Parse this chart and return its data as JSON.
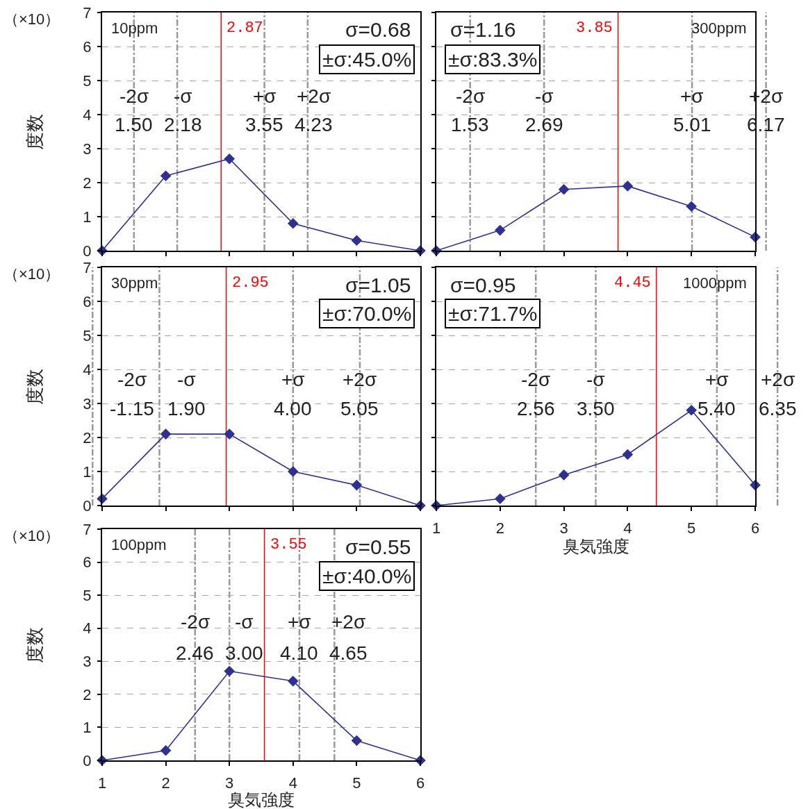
{
  "chart_data": [
    {
      "type": "line",
      "title": "10ppm",
      "ylabel": "度数",
      "x": [
        1,
        2,
        3,
        4,
        5,
        6
      ],
      "series": [
        {
          "color": "#2e3192",
          "values": [
            0,
            2.2,
            2.7,
            0.8,
            0.3,
            0
          ]
        }
      ],
      "xlim": [
        1,
        6
      ],
      "xticks": [
        1,
        2,
        3,
        4,
        5,
        6
      ],
      "ylim": [
        0,
        7
      ],
      "yticks": [
        0,
        1,
        2,
        3,
        4,
        5,
        6,
        7
      ],
      "tick_labels": "y",
      "grid": "y",
      "marker": "diamond",
      "line_style": "solid",
      "ref_lines": [
        {
          "axis": "x",
          "value": 2.87,
          "label": "2.87",
          "color": "#ff0000",
          "line_style": "solid"
        },
        {
          "axis": "x",
          "value": 1.5,
          "color": "#999999",
          "line_style": "dashdot"
        },
        {
          "axis": "x",
          "value": 2.18,
          "color": "#999999",
          "line_style": "dashdot"
        },
        {
          "axis": "x",
          "value": 3.55,
          "color": "#999999",
          "line_style": "dashdot"
        },
        {
          "axis": "x",
          "value": 4.23,
          "color": "#999999",
          "line_style": "dashdot"
        }
      ],
      "annotations": [
        "（×10）",
        "σ=0.68",
        "±σ:45.0%",
        {
          "text": "-2σ",
          "x": 1.5,
          "y": 4.55
        },
        {
          "text": "1.50",
          "x": 1.5,
          "y": 3.7
        },
        {
          "text": "-σ",
          "x": 2.18,
          "y": 4.55
        },
        {
          "text": "2.18",
          "x": 2.18,
          "y": 3.7
        },
        {
          "text": "+σ",
          "x": 3.55,
          "y": 4.55
        },
        {
          "text": "3.55",
          "x": 3.55,
          "y": 3.7
        },
        {
          "text": "+2σ",
          "x": 4.23,
          "y": 4.55
        },
        {
          "text": "4.23",
          "x": 4.23,
          "y": 3.7
        }
      ]
    },
    {
      "type": "line",
      "title": "300ppm",
      "x": [
        1,
        2,
        3,
        4,
        5,
        6
      ],
      "series": [
        {
          "color": "#2e3192",
          "values": [
            0,
            0.6,
            1.8,
            1.9,
            1.3,
            0.4
          ]
        }
      ],
      "xlim": [
        1,
        6
      ],
      "xticks": [
        1,
        2,
        3,
        4,
        5,
        6
      ],
      "ylim": [
        0,
        7
      ],
      "yticks": [
        0,
        1,
        2,
        3,
        4,
        5,
        6,
        7
      ],
      "tick_labels": false,
      "grid": "y",
      "marker": "diamond",
      "line_style": "solid",
      "ref_lines": [
        {
          "axis": "x",
          "value": 3.85,
          "label": "3.85",
          "color": "#ff0000",
          "line_style": "solid"
        },
        {
          "axis": "x",
          "value": 1.53,
          "color": "#999999",
          "line_style": "dashdot"
        },
        {
          "axis": "x",
          "value": 2.69,
          "color": "#999999",
          "line_style": "dashdot"
        },
        {
          "axis": "x",
          "value": 5.01,
          "color": "#999999",
          "line_style": "dashdot"
        },
        {
          "axis": "x",
          "value": 6.17,
          "color": "#999999",
          "line_style": "dashdot"
        }
      ],
      "annotations": [
        "σ=1.16",
        "±σ:83.3%",
        {
          "text": "-2σ",
          "x": 1.53,
          "y": 4.55
        },
        {
          "text": "1.53",
          "x": 1.53,
          "y": 3.7
        },
        {
          "text": "-σ",
          "x": 2.69,
          "y": 4.55
        },
        {
          "text": "2.69",
          "x": 2.69,
          "y": 3.7
        },
        {
          "text": "+σ",
          "x": 5.01,
          "y": 4.55
        },
        {
          "text": "5.01",
          "x": 5.01,
          "y": 3.7
        },
        {
          "text": "+2σ",
          "x": 6.17,
          "y": 4.55
        },
        {
          "text": "6.17",
          "x": 6.17,
          "y": 3.7
        }
      ]
    },
    {
      "type": "line",
      "title": "30ppm",
      "ylabel": "度数",
      "x": [
        1,
        2,
        3,
        4,
        5,
        6
      ],
      "series": [
        {
          "color": "#2e3192",
          "values": [
            0.2,
            2.1,
            2.1,
            1.0,
            0.6,
            0
          ]
        }
      ],
      "xlim": [
        1,
        6
      ],
      "xticks": [
        1,
        2,
        3,
        4,
        5,
        6
      ],
      "ylim": [
        0,
        7
      ],
      "yticks": [
        0,
        1,
        2,
        3,
        4,
        5,
        6,
        7
      ],
      "tick_labels": "y",
      "grid": "y",
      "marker": "diamond",
      "line_style": "solid",
      "ref_lines": [
        {
          "axis": "x",
          "value": 2.95,
          "label": "2.95",
          "color": "#ff0000",
          "line_style": "solid"
        },
        {
          "axis": "x",
          "value": 0.85,
          "color": "#999999",
          "line_style": "dashdot"
        },
        {
          "axis": "x",
          "value": 1.9,
          "color": "#999999",
          "line_style": "dashdot"
        },
        {
          "axis": "x",
          "value": 4.0,
          "color": "#999999",
          "line_style": "dashdot"
        },
        {
          "axis": "x",
          "value": 5.05,
          "color": "#999999",
          "line_style": "dashdot"
        }
      ],
      "annotations": [
        "（×10）",
        "σ=1.05",
        "±σ:70.0%",
        {
          "text": "-2σ",
          "x": 0.85,
          "y": 3.7
        },
        {
          "text": "-1.15",
          "x": 0.85,
          "y": 2.85
        },
        {
          "text": "-σ",
          "x": 1.9,
          "y": 3.7
        },
        {
          "text": "1.90",
          "x": 1.9,
          "y": 2.85
        },
        {
          "text": "+σ",
          "x": 4.0,
          "y": 3.7
        },
        {
          "text": "4.00",
          "x": 4.0,
          "y": 2.85
        },
        {
          "text": "+2σ",
          "x": 5.05,
          "y": 3.7
        },
        {
          "text": "5.05",
          "x": 5.05,
          "y": 2.85
        }
      ]
    },
    {
      "type": "line",
      "title": "1000ppm",
      "xlabel": "臭気強度",
      "x": [
        1,
        2,
        3,
        4,
        5,
        6
      ],
      "series": [
        {
          "color": "#2e3192",
          "values": [
            0,
            0.2,
            0.9,
            1.5,
            2.8,
            0.6
          ]
        }
      ],
      "xlim": [
        1,
        6
      ],
      "xticks": [
        1,
        2,
        3,
        4,
        5,
        6
      ],
      "ylim": [
        0,
        7
      ],
      "yticks": [
        0,
        1,
        2,
        3,
        4,
        5,
        6,
        7
      ],
      "tick_labels": "x",
      "grid": "y",
      "marker": "diamond",
      "line_style": "solid",
      "ref_lines": [
        {
          "axis": "x",
          "value": 4.45,
          "label": "4.45",
          "color": "#ff0000",
          "line_style": "solid"
        },
        {
          "axis": "x",
          "value": 2.56,
          "color": "#999999",
          "line_style": "dashdot"
        },
        {
          "axis": "x",
          "value": 3.5,
          "color": "#999999",
          "line_style": "dashdot"
        },
        {
          "axis": "x",
          "value": 5.4,
          "color": "#999999",
          "line_style": "dashdot"
        },
        {
          "axis": "x",
          "value": 6.35,
          "color": "#999999",
          "line_style": "dashdot"
        }
      ],
      "annotations": [
        "σ=0.95",
        "±σ:71.7%",
        {
          "text": "-2σ",
          "x": 2.56,
          "y": 3.7
        },
        {
          "text": "2.56",
          "x": 2.56,
          "y": 2.85
        },
        {
          "text": "-σ",
          "x": 3.5,
          "y": 3.7
        },
        {
          "text": "3.50",
          "x": 3.5,
          "y": 2.85
        },
        {
          "text": "+σ",
          "x": 5.4,
          "y": 3.7
        },
        {
          "text": "5.40",
          "x": 5.4,
          "y": 2.85
        },
        {
          "text": "+2σ",
          "x": 6.35,
          "y": 3.7
        },
        {
          "text": "6.35",
          "x": 6.35,
          "y": 2.85
        }
      ]
    },
    {
      "type": "line",
      "title": "100ppm",
      "xlabel": "臭気強度",
      "ylabel": "度数",
      "x": [
        1,
        2,
        3,
        4,
        5,
        6
      ],
      "series": [
        {
          "color": "#2e3192",
          "values": [
            0,
            0.3,
            2.7,
            2.4,
            0.6,
            0
          ]
        }
      ],
      "xlim": [
        1,
        6
      ],
      "xticks": [
        1,
        2,
        3,
        4,
        5,
        6
      ],
      "ylim": [
        0,
        7
      ],
      "yticks": [
        0,
        1,
        2,
        3,
        4,
        5,
        6,
        7
      ],
      "grid": "y",
      "marker": "diamond",
      "line_style": "solid",
      "ref_lines": [
        {
          "axis": "x",
          "value": 3.55,
          "label": "3.55",
          "color": "#ff0000",
          "line_style": "solid"
        },
        {
          "axis": "x",
          "value": 2.46,
          "color": "#999999",
          "line_style": "dashdot"
        },
        {
          "axis": "x",
          "value": 3.0,
          "color": "#999999",
          "line_style": "dashdot"
        },
        {
          "axis": "x",
          "value": 4.1,
          "color": "#999999",
          "line_style": "dashdot"
        },
        {
          "axis": "x",
          "value": 4.65,
          "color": "#999999",
          "line_style": "dashdot"
        }
      ],
      "annotations": [
        "（×10）",
        "σ=0.55",
        "±σ:40.0%",
        {
          "text": "-2σ",
          "x": 2.46,
          "y": 4.2
        },
        {
          "text": "2.46",
          "x": 2.46,
          "y": 3.25
        },
        {
          "text": "-σ",
          "x": 3.0,
          "y": 4.2
        },
        {
          "text": "3.00",
          "x": 3.0,
          "y": 3.25
        },
        {
          "text": "+σ",
          "x": 4.1,
          "y": 4.2
        },
        {
          "text": "4.10",
          "x": 4.1,
          "y": 3.25
        },
        {
          "text": "+2σ",
          "x": 4.65,
          "y": 4.2
        },
        {
          "text": "4.65",
          "x": 4.65,
          "y": 3.25
        }
      ]
    }
  ]
}
